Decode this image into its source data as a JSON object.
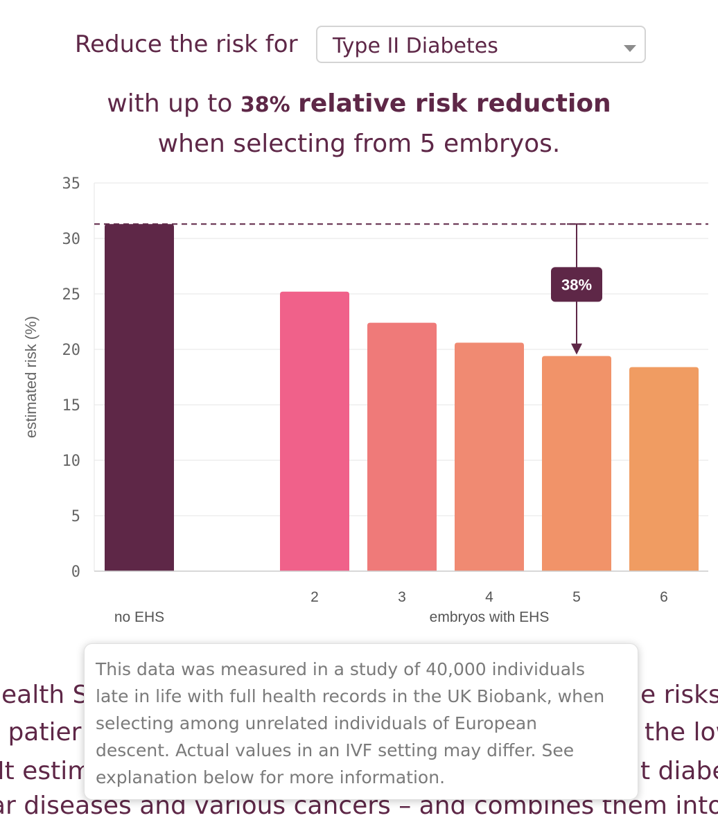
{
  "header": {
    "label": "Reduce the risk for",
    "select": {
      "value": "Type II Diabetes"
    }
  },
  "headline": {
    "prefix": "with up to",
    "pct": "38%",
    "bold": "relative risk reduction",
    "line2": "when selecting from 5 embryos."
  },
  "chart_data": {
    "type": "bar",
    "title": "",
    "ylabel": "estimated risk (%)",
    "xlabel_group1": "no EHS",
    "xlabel_group2": "embryos with EHS",
    "ylim": [
      0,
      35
    ],
    "yticks": [
      0,
      5,
      10,
      15,
      20,
      25,
      30,
      35
    ],
    "baseline": 31.3,
    "bars": [
      {
        "label": "",
        "value": 31.3,
        "color": "#5e2747"
      },
      {
        "label": "2",
        "value": 25.2,
        "color": "#f0618a"
      },
      {
        "label": "3",
        "value": 22.4,
        "color": "#ef7a79"
      },
      {
        "label": "4",
        "value": 20.6,
        "color": "#f08a72"
      },
      {
        "label": "5",
        "value": 19.4,
        "color": "#f19369"
      },
      {
        "label": "6",
        "value": 18.4,
        "color": "#f09c62"
      }
    ],
    "annotation": {
      "bar_label": "5",
      "text": "38%"
    }
  },
  "tooltip": {
    "text": "This data was measured in a study of 40,000 individuals\nlate in life with full health records in the UK Biobank, when\nselecting among unrelated individuals of European\ndescent. Actual values in an IVF setting may differ. See\nexplanation below for more information."
  },
  "background_text": {
    "line1_left": "lealth S",
    "line1_right": "e risks",
    "line2_left": "l patier",
    "line2_right": "the low",
    "line3_left": "It estim",
    "line3_right": "t diabe",
    "line4": "ar diseases and various cancers – and combines them into"
  }
}
